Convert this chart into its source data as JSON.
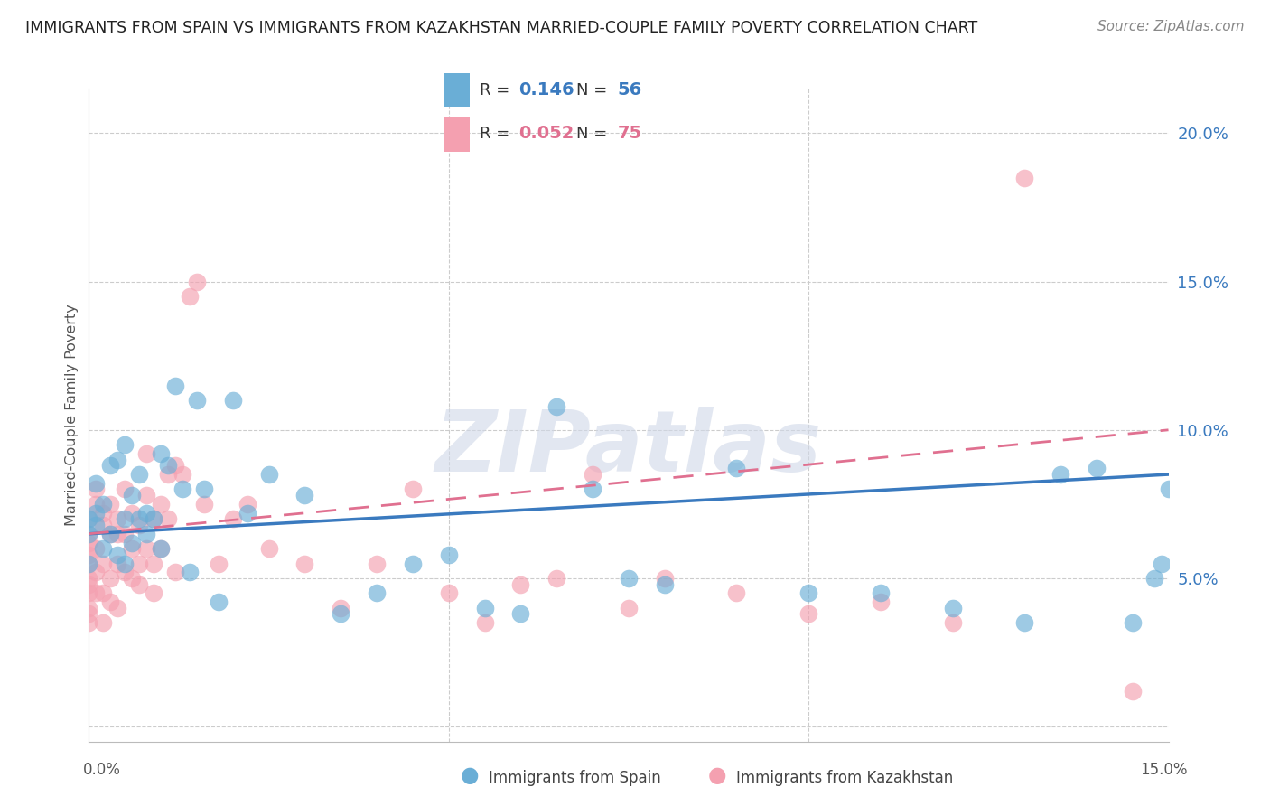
{
  "title": "IMMIGRANTS FROM SPAIN VS IMMIGRANTS FROM KAZAKHSTAN MARRIED-COUPLE FAMILY POVERTY CORRELATION CHART",
  "source": "Source: ZipAtlas.com",
  "ylabel": "Married-Couple Family Poverty",
  "xlim": [
    0.0,
    15.0
  ],
  "ylim": [
    -0.5,
    21.5
  ],
  "y_ticks": [
    0.0,
    5.0,
    10.0,
    15.0,
    20.0
  ],
  "y_tick_labels": [
    "",
    "5.0%",
    "10.0%",
    "15.0%",
    "20.0%"
  ],
  "spain_color": "#6aaed6",
  "spain_line_color": "#3a7abf",
  "kazakhstan_color": "#f4a0b0",
  "kazakhstan_line_color": "#e07090",
  "spain_R": 0.146,
  "spain_N": 56,
  "kazakhstan_R": 0.052,
  "kazakhstan_N": 75,
  "spain_scatter_x": [
    0.0,
    0.0,
    0.0,
    0.1,
    0.1,
    0.1,
    0.2,
    0.2,
    0.3,
    0.3,
    0.4,
    0.4,
    0.5,
    0.5,
    0.5,
    0.6,
    0.6,
    0.7,
    0.7,
    0.8,
    0.8,
    0.9,
    1.0,
    1.0,
    1.1,
    1.2,
    1.3,
    1.4,
    1.5,
    1.6,
    1.8,
    2.0,
    2.2,
    2.5,
    3.0,
    3.5,
    4.0,
    4.5,
    5.0,
    5.5,
    6.0,
    6.5,
    7.0,
    7.5,
    8.0,
    9.0,
    10.0,
    11.0,
    12.0,
    13.0,
    13.5,
    14.0,
    14.5,
    14.8,
    14.9,
    15.0
  ],
  "spain_scatter_y": [
    6.5,
    7.0,
    5.5,
    7.2,
    6.8,
    8.2,
    6.0,
    7.5,
    8.8,
    6.5,
    5.8,
    9.0,
    7.0,
    9.5,
    5.5,
    6.2,
    7.8,
    7.0,
    8.5,
    7.2,
    6.5,
    7.0,
    6.0,
    9.2,
    8.8,
    11.5,
    8.0,
    5.2,
    11.0,
    8.0,
    4.2,
    11.0,
    7.2,
    8.5,
    7.8,
    3.8,
    4.5,
    5.5,
    5.8,
    4.0,
    3.8,
    10.8,
    8.0,
    5.0,
    4.8,
    8.7,
    4.5,
    4.5,
    4.0,
    3.5,
    8.5,
    8.7,
    3.5,
    5.0,
    5.5,
    8.0
  ],
  "kazakhstan_scatter_x": [
    0.0,
    0.0,
    0.0,
    0.0,
    0.0,
    0.0,
    0.0,
    0.0,
    0.0,
    0.0,
    0.0,
    0.1,
    0.1,
    0.1,
    0.1,
    0.1,
    0.2,
    0.2,
    0.2,
    0.2,
    0.2,
    0.3,
    0.3,
    0.3,
    0.3,
    0.4,
    0.4,
    0.4,
    0.4,
    0.5,
    0.5,
    0.5,
    0.6,
    0.6,
    0.6,
    0.7,
    0.7,
    0.7,
    0.8,
    0.8,
    0.8,
    0.9,
    0.9,
    0.9,
    1.0,
    1.0,
    1.1,
    1.1,
    1.2,
    1.2,
    1.3,
    1.4,
    1.5,
    1.6,
    1.8,
    2.0,
    2.2,
    2.5,
    3.0,
    3.5,
    4.0,
    4.5,
    5.0,
    5.5,
    6.0,
    6.5,
    7.0,
    7.5,
    8.0,
    9.0,
    10.0,
    11.0,
    12.0,
    13.0,
    14.5
  ],
  "kazakhstan_scatter_y": [
    6.5,
    7.0,
    5.0,
    4.5,
    5.8,
    3.5,
    4.0,
    6.2,
    5.5,
    4.8,
    3.8,
    7.5,
    8.0,
    5.2,
    6.0,
    4.5,
    6.8,
    7.2,
    5.5,
    4.5,
    3.5,
    7.5,
    6.5,
    5.0,
    4.2,
    7.0,
    6.5,
    5.5,
    4.0,
    8.0,
    6.5,
    5.2,
    7.2,
    6.0,
    5.0,
    6.8,
    5.5,
    4.8,
    9.2,
    7.8,
    6.0,
    7.0,
    5.5,
    4.5,
    7.5,
    6.0,
    8.5,
    7.0,
    8.8,
    5.2,
    8.5,
    14.5,
    15.0,
    7.5,
    5.5,
    7.0,
    7.5,
    6.0,
    5.5,
    4.0,
    5.5,
    8.0,
    4.5,
    3.5,
    4.8,
    5.0,
    8.5,
    4.0,
    5.0,
    4.5,
    3.8,
    4.2,
    3.5,
    18.5,
    1.2
  ],
  "watermark_text": "ZIPatlas",
  "background_color": "#ffffff",
  "grid_color": "#cccccc"
}
